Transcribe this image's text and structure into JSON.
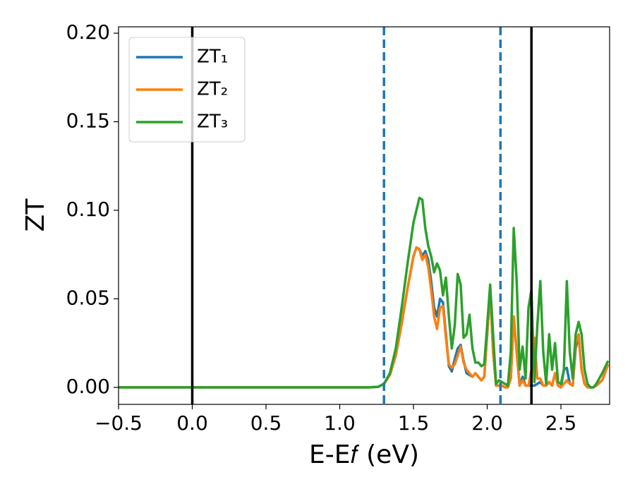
{
  "chart_data": {
    "type": "line",
    "xlabel": "E-E𝑓 (eV)",
    "ylabel": "ZT",
    "xlim": [
      -0.5,
      2.83
    ],
    "ylim": [
      -0.0096,
      0.2036
    ],
    "xticks": [
      {
        "value": -0.5,
        "label": "−0.5"
      },
      {
        "value": 0,
        "label": "0.0"
      },
      {
        "value": 0.5,
        "label": "0.5"
      },
      {
        "value": 1,
        "label": "1.0"
      },
      {
        "value": 1.5,
        "label": "1.5"
      },
      {
        "value": 2,
        "label": "2.0"
      },
      {
        "value": 2.5,
        "label": "2.5"
      }
    ],
    "yticks": [
      {
        "value": 0,
        "label": "0.00"
      },
      {
        "value": 0.05,
        "label": "0.05"
      },
      {
        "value": 0.1,
        "label": "0.10"
      },
      {
        "value": 0.15,
        "label": "0.15"
      },
      {
        "value": 0.2,
        "label": "0.20"
      }
    ],
    "legend": "upper left",
    "vlines": [
      {
        "x": 0,
        "color": "#000000",
        "style": "solid"
      },
      {
        "x": 1.3,
        "color": "#1f77b4",
        "style": "dashed"
      },
      {
        "x": 2.09,
        "color": "#1f77b4",
        "style": "dashed"
      },
      {
        "x": 2.3,
        "color": "#000000",
        "style": "solid"
      }
    ],
    "x": [
      -0.5,
      1.2,
      1.26,
      1.3,
      1.34,
      1.38,
      1.42,
      1.46,
      1.5,
      1.52,
      1.54,
      1.56,
      1.58,
      1.6,
      1.62,
      1.64,
      1.66,
      1.68,
      1.7,
      1.72,
      1.74,
      1.76,
      1.78,
      1.8,
      1.82,
      1.84,
      1.86,
      1.88,
      1.9,
      1.92,
      1.94,
      1.96,
      1.98,
      2.0,
      2.02,
      2.04,
      2.06,
      2.08,
      2.1,
      2.12,
      2.14,
      2.16,
      2.18,
      2.2,
      2.22,
      2.24,
      2.26,
      2.28,
      2.3,
      2.32,
      2.34,
      2.36,
      2.38,
      2.4,
      2.42,
      2.44,
      2.46,
      2.48,
      2.5,
      2.52,
      2.54,
      2.56,
      2.58,
      2.6,
      2.62,
      2.64,
      2.66,
      2.68,
      2.7,
      2.72,
      2.74,
      2.78,
      2.82
    ],
    "series": [
      {
        "name": "ZT₁",
        "color": "#1f77b4",
        "values": [
          0,
          0,
          0.0003,
          0.002,
          0.007,
          0.018,
          0.036,
          0.056,
          0.074,
          0.079,
          0.078,
          0.074,
          0.077,
          0.072,
          0.06,
          0.045,
          0.04,
          0.05,
          0.048,
          0.03,
          0.012,
          0.009,
          0.016,
          0.022,
          0.024,
          0.015,
          0.008,
          0.007,
          0.006,
          0.008,
          0.006,
          0.004,
          0.006,
          0.03,
          0.055,
          0.02,
          0.001,
          0.001,
          0.001,
          0,
          0,
          0.005,
          0.04,
          0.02,
          0.001,
          0.006,
          0.001,
          0.001,
          0.001,
          0.001,
          0.002,
          0.003,
          0.001,
          0.001,
          0.003,
          0.001,
          0.008,
          0.001,
          0,
          0.01,
          0.011,
          0.002,
          0.001,
          0.022,
          0.029,
          0.01,
          0.002,
          0,
          0,
          0,
          0.001,
          0.004,
          0.013
        ]
      },
      {
        "name": "ZT₂",
        "color": "#ff7f0e",
        "values": [
          0,
          0,
          0.0003,
          0.002,
          0.007,
          0.018,
          0.036,
          0.056,
          0.074,
          0.079,
          0.078,
          0.072,
          0.075,
          0.068,
          0.055,
          0.04,
          0.033,
          0.045,
          0.046,
          0.028,
          0.013,
          0.011,
          0.013,
          0.018,
          0.023,
          0.014,
          0.01,
          0.008,
          0.006,
          0.008,
          0.006,
          0.004,
          0.006,
          0.03,
          0.055,
          0.02,
          0.001,
          0.001,
          0.001,
          0,
          0,
          0.005,
          0.04,
          0.02,
          0.001,
          0.004,
          0.001,
          0.001,
          0.01,
          0.028,
          0.005,
          0.005,
          0.001,
          0.001,
          0.003,
          0.001,
          0.008,
          0.001,
          0,
          0.002,
          0.004,
          0.002,
          0.001,
          0.025,
          0.03,
          0.01,
          0.002,
          0,
          0,
          0,
          0.001,
          0.004,
          0.013
        ]
      },
      {
        "name": "ZT₃",
        "color": "#2ca02c",
        "values": [
          0,
          0,
          0.0003,
          0.002,
          0.008,
          0.022,
          0.045,
          0.07,
          0.093,
          0.1,
          0.107,
          0.106,
          0.09,
          0.08,
          0.074,
          0.065,
          0.07,
          0.066,
          0.052,
          0.062,
          0.04,
          0.022,
          0.035,
          0.064,
          0.058,
          0.028,
          0.03,
          0.041,
          0.022,
          0.014,
          0.014,
          0.012,
          0.013,
          0.035,
          0.058,
          0.03,
          0.002,
          0.004,
          0.003,
          0.002,
          0.001,
          0.02,
          0.09,
          0.06,
          0.01,
          0.023,
          0.005,
          0.045,
          0.055,
          0.003,
          0.035,
          0.06,
          0.02,
          0.002,
          0.03,
          0.01,
          0.025,
          0.003,
          0.002,
          0.01,
          0.06,
          0.02,
          0.005,
          0.03,
          0.037,
          0.03,
          0.01,
          0.002,
          0,
          0,
          0.002,
          0.008,
          0.015
        ]
      }
    ]
  }
}
